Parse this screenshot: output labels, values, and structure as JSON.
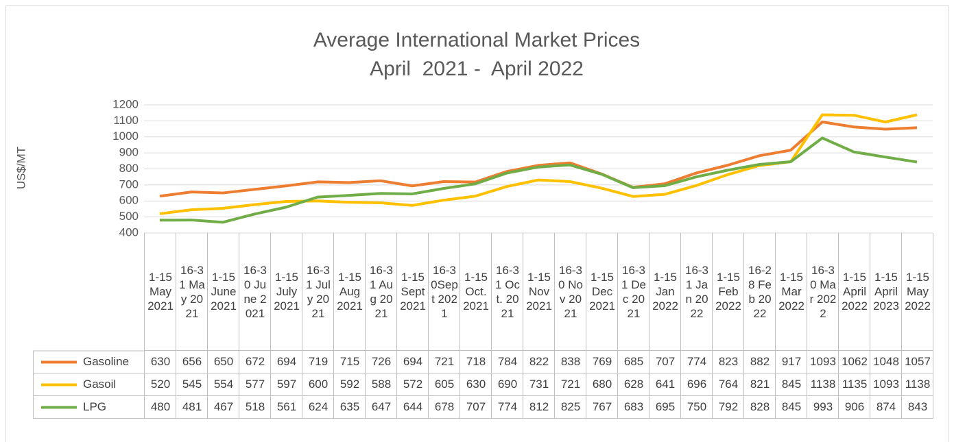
{
  "chart_data": {
    "type": "line",
    "title": "Average International Market Prices",
    "subtitle": "April  2021 -  April 2022",
    "y_label": "US$/MT",
    "categories": [
      "1-15 May 2021",
      "16-31 May 2021",
      "1-15 June 2021",
      "16-30 June 2021",
      "1-15 July 2021",
      "16-31 July 2021",
      "1-15 Aug 2021",
      "16-31 Aug 2021",
      "1-15 Sept 2021",
      "16-30Sept 2021",
      "1-15 Oct. 2021",
      "16-31 Oct. 2021",
      "1-15 Nov 2021",
      "16-30 Nov 2021",
      "1-15 Dec 2021",
      "16-31 Dec 2021",
      "1-15 Jan 2022",
      "16-31 Jan 2022",
      "1-15 Feb 2022",
      "16-28 Feb 2022",
      "1-15 Mar 2022",
      "16-30 Mar 2022",
      "1-15 April 2022",
      "1-15 April 2023",
      "1-15 May 2022"
    ],
    "series": [
      {
        "name": "Gasoline",
        "color": "#ED7D31",
        "values": [
          630,
          656,
          650,
          672,
          694,
          719,
          715,
          726,
          694,
          721,
          718,
          784,
          822,
          838,
          769,
          685,
          707,
          774,
          823,
          882,
          917,
          1093,
          1062,
          1048,
          1057
        ]
      },
      {
        "name": "Gasoil",
        "color": "#FFC000",
        "values": [
          520,
          545,
          554,
          577,
          597,
          600,
          592,
          588,
          572,
          605,
          630,
          690,
          731,
          721,
          680,
          628,
          641,
          696,
          764,
          821,
          845,
          1138,
          1135,
          1093,
          1138
        ]
      },
      {
        "name": "LPG",
        "color": "#70AD47",
        "values": [
          480,
          481,
          467,
          518,
          561,
          624,
          635,
          647,
          644,
          678,
          707,
          774,
          812,
          825,
          767,
          683,
          695,
          750,
          792,
          828,
          845,
          993,
          906,
          874,
          843
        ]
      }
    ],
    "ylim": [
      400,
      1200
    ],
    "yticks": [
      400,
      500,
      600,
      700,
      800,
      900,
      1000,
      1100,
      1200
    ],
    "grid": true
  }
}
